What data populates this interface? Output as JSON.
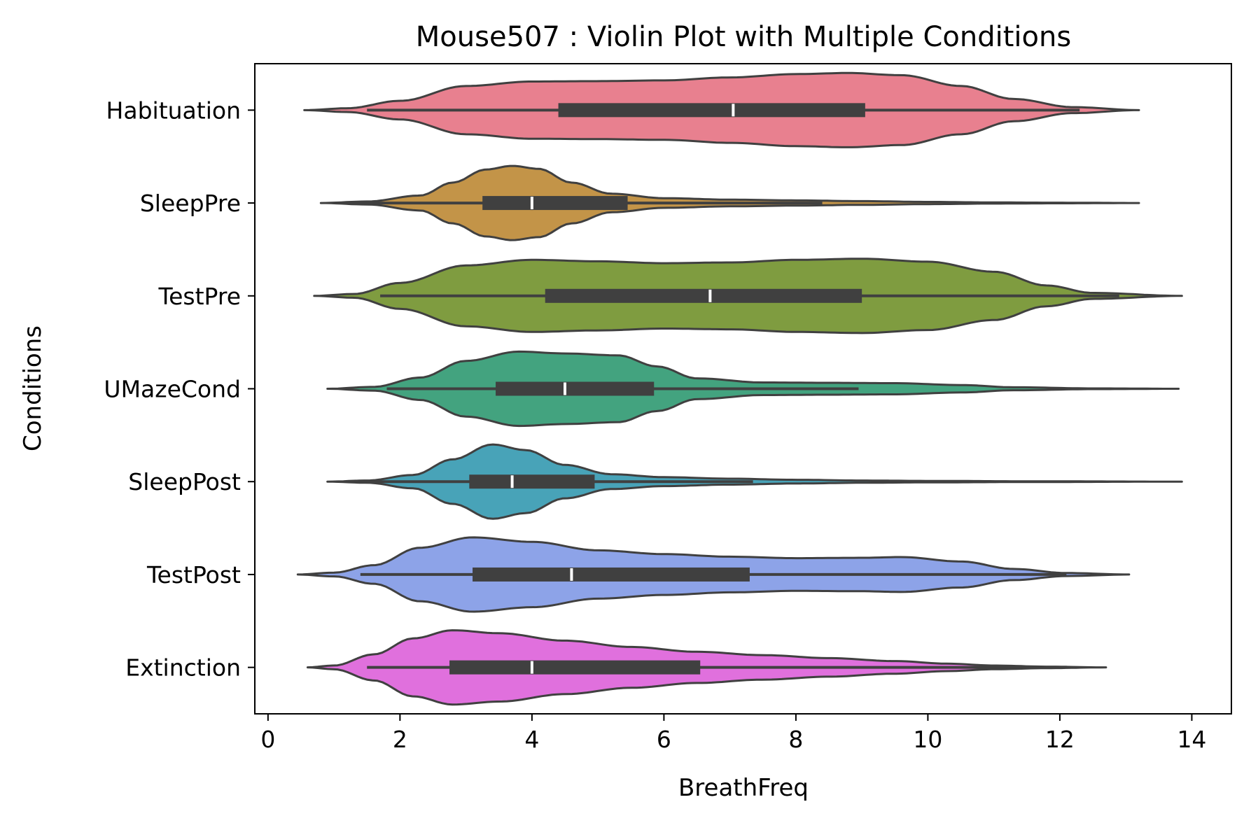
{
  "chart_data": {
    "type": "violin",
    "title": "Mouse507 : Violin Plot with Multiple Conditions",
    "xlabel": "BreathFreq",
    "ylabel": "Conditions",
    "xlim": [
      -0.2,
      14.6
    ],
    "xticks": [
      0,
      2,
      4,
      6,
      8,
      10,
      12,
      14
    ],
    "grid": false,
    "legend": "none",
    "categories": [
      "Habituation",
      "SleepPre",
      "TestPre",
      "UMazeCond",
      "SleepPost",
      "TestPost",
      "Extinction"
    ],
    "series": [
      {
        "category": "Habituation",
        "color": "#e8808f",
        "min": 0.55,
        "max": 13.2,
        "whisker_low": 1.5,
        "whisker_high": 12.3,
        "q1": 4.4,
        "median": 7.05,
        "q3": 9.05,
        "density": [
          [
            0.55,
            0.0
          ],
          [
            1.2,
            0.05
          ],
          [
            2.0,
            0.25
          ],
          [
            3.0,
            0.65
          ],
          [
            4.0,
            0.77
          ],
          [
            5.0,
            0.78
          ],
          [
            6.0,
            0.8
          ],
          [
            7.0,
            0.88
          ],
          [
            8.0,
            0.97
          ],
          [
            8.8,
            1.0
          ],
          [
            9.6,
            0.94
          ],
          [
            10.5,
            0.65
          ],
          [
            11.3,
            0.3
          ],
          [
            12.2,
            0.08
          ],
          [
            13.2,
            0.0
          ]
        ]
      },
      {
        "category": "SleepPre",
        "color": "#c39448",
        "min": 0.8,
        "max": 13.2,
        "whisker_low": 1.2,
        "whisker_high": 8.4,
        "q1": 3.25,
        "median": 4.0,
        "q3": 5.45,
        "density": [
          [
            0.8,
            0.0
          ],
          [
            1.5,
            0.04
          ],
          [
            2.3,
            0.2
          ],
          [
            2.8,
            0.55
          ],
          [
            3.3,
            0.9
          ],
          [
            3.7,
            1.0
          ],
          [
            4.1,
            0.92
          ],
          [
            4.6,
            0.55
          ],
          [
            5.2,
            0.25
          ],
          [
            6.0,
            0.13
          ],
          [
            7.0,
            0.09
          ],
          [
            8.0,
            0.07
          ],
          [
            9.0,
            0.05
          ],
          [
            10.0,
            0.03
          ],
          [
            11.0,
            0.015
          ],
          [
            12.0,
            0.008
          ],
          [
            13.2,
            0.0
          ]
        ]
      },
      {
        "category": "TestPre",
        "color": "#7f9c40",
        "min": 0.7,
        "max": 13.85,
        "whisker_low": 1.7,
        "whisker_high": 12.9,
        "q1": 4.2,
        "median": 6.7,
        "q3": 9.0,
        "density": [
          [
            0.7,
            0.0
          ],
          [
            1.3,
            0.05
          ],
          [
            2.0,
            0.35
          ],
          [
            3.0,
            0.82
          ],
          [
            4.0,
            0.97
          ],
          [
            5.0,
            0.93
          ],
          [
            6.0,
            0.88
          ],
          [
            7.0,
            0.9
          ],
          [
            8.0,
            0.97
          ],
          [
            9.0,
            1.0
          ],
          [
            10.0,
            0.92
          ],
          [
            11.0,
            0.65
          ],
          [
            11.8,
            0.28
          ],
          [
            12.5,
            0.08
          ],
          [
            13.85,
            0.0
          ]
        ]
      },
      {
        "category": "UMazeCond",
        "color": "#43a37f",
        "min": 0.9,
        "max": 13.8,
        "whisker_low": 1.8,
        "whisker_high": 8.95,
        "q1": 3.45,
        "median": 4.5,
        "q3": 5.85,
        "density": [
          [
            0.9,
            0.0
          ],
          [
            1.6,
            0.05
          ],
          [
            2.3,
            0.3
          ],
          [
            3.0,
            0.75
          ],
          [
            3.8,
            1.0
          ],
          [
            4.5,
            0.95
          ],
          [
            5.3,
            0.9
          ],
          [
            5.9,
            0.6
          ],
          [
            6.5,
            0.28
          ],
          [
            7.5,
            0.17
          ],
          [
            8.5,
            0.16
          ],
          [
            9.5,
            0.15
          ],
          [
            10.5,
            0.1
          ],
          [
            11.3,
            0.04
          ],
          [
            12.5,
            0.01
          ],
          [
            13.8,
            0.0
          ]
        ]
      },
      {
        "category": "SleepPost",
        "color": "#48a3b8",
        "min": 0.9,
        "max": 13.85,
        "whisker_low": 1.3,
        "whisker_high": 7.35,
        "q1": 3.05,
        "median": 3.7,
        "q3": 4.95,
        "density": [
          [
            0.9,
            0.0
          ],
          [
            1.5,
            0.03
          ],
          [
            2.2,
            0.18
          ],
          [
            2.8,
            0.6
          ],
          [
            3.4,
            1.0
          ],
          [
            3.9,
            0.85
          ],
          [
            4.5,
            0.45
          ],
          [
            5.2,
            0.2
          ],
          [
            6.0,
            0.12
          ],
          [
            7.0,
            0.08
          ],
          [
            8.0,
            0.05
          ],
          [
            9.0,
            0.03
          ],
          [
            10.0,
            0.02
          ],
          [
            11.5,
            0.01
          ],
          [
            13.85,
            0.0
          ]
        ]
      },
      {
        "category": "TestPost",
        "color": "#8da3e8",
        "min": 0.45,
        "max": 13.05,
        "whisker_low": 1.4,
        "whisker_high": 12.1,
        "q1": 3.1,
        "median": 4.6,
        "q3": 7.3,
        "density": [
          [
            0.45,
            0.0
          ],
          [
            1.0,
            0.05
          ],
          [
            1.6,
            0.25
          ],
          [
            2.3,
            0.72
          ],
          [
            3.1,
            1.0
          ],
          [
            4.0,
            0.88
          ],
          [
            5.0,
            0.65
          ],
          [
            6.0,
            0.55
          ],
          [
            7.0,
            0.48
          ],
          [
            8.0,
            0.44
          ],
          [
            9.0,
            0.45
          ],
          [
            9.6,
            0.47
          ],
          [
            10.5,
            0.35
          ],
          [
            11.3,
            0.15
          ],
          [
            12.1,
            0.04
          ],
          [
            13.05,
            0.0
          ]
        ]
      },
      {
        "category": "Extinction",
        "color": "#e070dd",
        "min": 0.6,
        "max": 12.7,
        "whisker_low": 1.5,
        "whisker_high": 11.85,
        "q1": 2.75,
        "median": 4.0,
        "q3": 6.55,
        "density": [
          [
            0.6,
            0.0
          ],
          [
            1.0,
            0.05
          ],
          [
            1.6,
            0.35
          ],
          [
            2.2,
            0.78
          ],
          [
            2.8,
            1.0
          ],
          [
            3.5,
            0.92
          ],
          [
            4.5,
            0.72
          ],
          [
            5.5,
            0.55
          ],
          [
            6.5,
            0.42
          ],
          [
            7.5,
            0.33
          ],
          [
            8.5,
            0.25
          ],
          [
            9.5,
            0.17
          ],
          [
            10.3,
            0.1
          ],
          [
            11.0,
            0.05
          ],
          [
            11.8,
            0.02
          ],
          [
            12.7,
            0.0
          ]
        ]
      }
    ]
  }
}
